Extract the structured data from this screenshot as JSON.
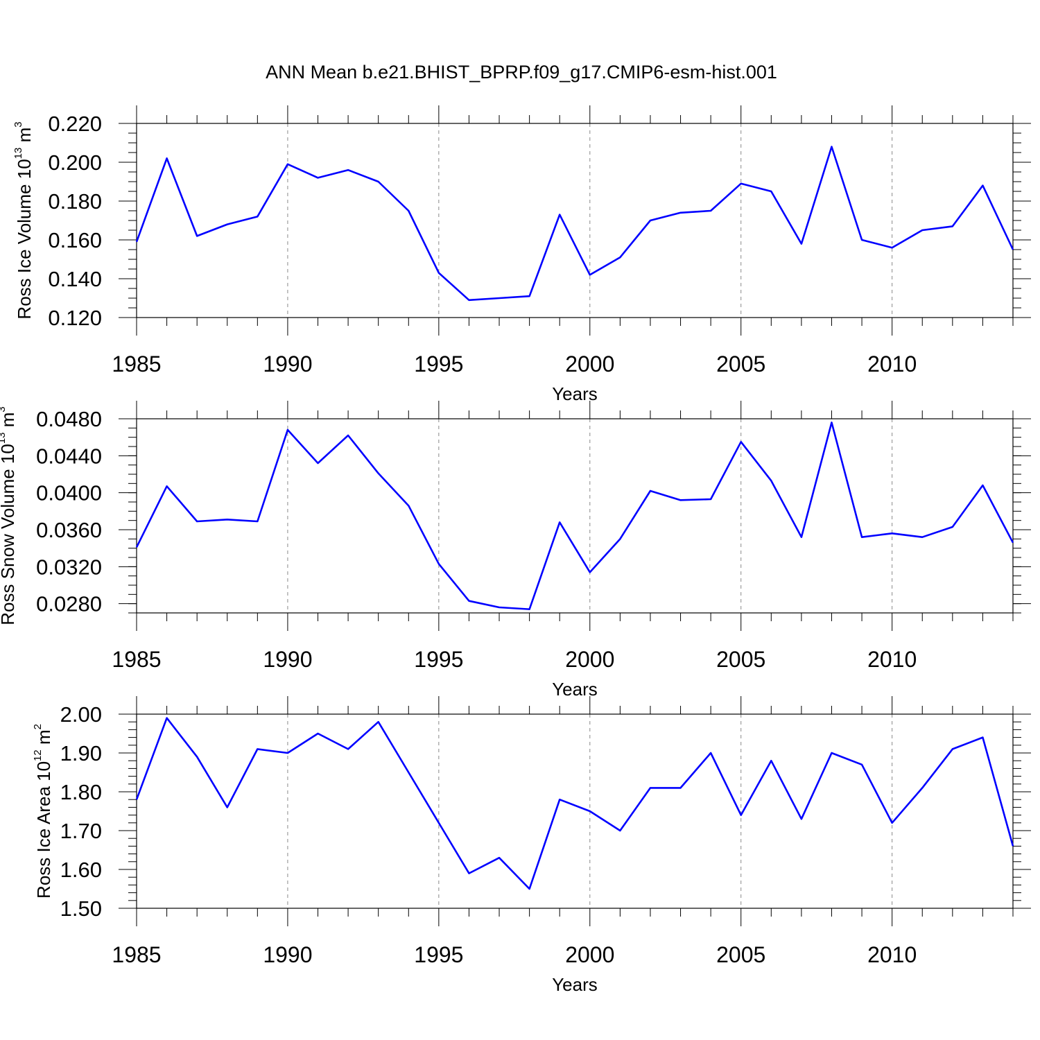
{
  "title": "ANN Mean b.e21.BHIST_BPRP.f09_g17.CMIP6-esm-hist.001",
  "line_color": "#0000ff",
  "chart_data": [
    {
      "type": "line",
      "name": "ice-volume",
      "title": "ANN Mean b.e21.BHIST_BPRP.f09_g17.CMIP6-esm-hist.001",
      "xlabel": "Years",
      "ylabel": "Ross Ice Volume 10",
      "ylabel_sup": "13",
      "ylabel_unit": " m",
      "ylabel_unit_sup": "3",
      "xlim": [
        1985,
        2014
      ],
      "ylim": [
        0.12,
        0.22
      ],
      "x_ticks": [
        1985,
        1990,
        1995,
        2000,
        2005,
        2010
      ],
      "x_tick_labels": [
        "1985",
        "1990",
        "1995",
        "2000",
        "2005",
        "2010"
      ],
      "y_ticks": [
        0.12,
        0.14,
        0.16,
        0.18,
        0.2,
        0.22
      ],
      "y_tick_labels": [
        "0.120",
        "0.140",
        "0.160",
        "0.180",
        "0.200",
        "0.220"
      ],
      "y_minor_step": 0.005,
      "x": [
        1985,
        1986,
        1987,
        1988,
        1989,
        1990,
        1991,
        1992,
        1993,
        1994,
        1995,
        1996,
        1997,
        1998,
        1999,
        2000,
        2001,
        2002,
        2003,
        2004,
        2005,
        2006,
        2007,
        2008,
        2009,
        2010,
        2011,
        2012,
        2013,
        2014
      ],
      "values": [
        0.159,
        0.202,
        0.162,
        0.168,
        0.172,
        0.199,
        0.192,
        0.196,
        0.19,
        0.175,
        0.143,
        0.129,
        0.13,
        0.131,
        0.173,
        0.142,
        0.151,
        0.17,
        0.174,
        0.175,
        0.189,
        0.185,
        0.158,
        0.208,
        0.16,
        0.156,
        0.165,
        0.167,
        0.188,
        0.155
      ]
    },
    {
      "type": "line",
      "name": "snow-volume",
      "xlabel": "Years",
      "ylabel": "Ross Snow Volume 10",
      "ylabel_sup": "13",
      "ylabel_unit": " m",
      "ylabel_unit_sup": "3",
      "xlim": [
        1985,
        2014
      ],
      "ylim": [
        0.027,
        0.048
      ],
      "x_ticks": [
        1985,
        1990,
        1995,
        2000,
        2005,
        2010
      ],
      "x_tick_labels": [
        "1985",
        "1990",
        "1995",
        "2000",
        "2005",
        "2010"
      ],
      "y_ticks": [
        0.028,
        0.032,
        0.036,
        0.04,
        0.044,
        0.048
      ],
      "y_tick_labels": [
        "0.0280",
        "0.0320",
        "0.0360",
        "0.0400",
        "0.0440",
        "0.0480"
      ],
      "y_minor_step": 0.001,
      "x": [
        1985,
        1986,
        1987,
        1988,
        1989,
        1990,
        1991,
        1992,
        1993,
        1994,
        1995,
        1996,
        1997,
        1998,
        1999,
        2000,
        2001,
        2002,
        2003,
        2004,
        2005,
        2006,
        2007,
        2008,
        2009,
        2010,
        2011,
        2012,
        2013,
        2014
      ],
      "values": [
        0.0341,
        0.0407,
        0.0369,
        0.0371,
        0.0369,
        0.0468,
        0.0432,
        0.0462,
        0.0421,
        0.0386,
        0.0323,
        0.0283,
        0.0276,
        0.0274,
        0.0368,
        0.0314,
        0.035,
        0.0402,
        0.0392,
        0.0393,
        0.0455,
        0.0413,
        0.0352,
        0.0476,
        0.0352,
        0.0356,
        0.0352,
        0.0363,
        0.0408,
        0.0346
      ]
    },
    {
      "type": "line",
      "name": "ice-area",
      "xlabel": "Years",
      "ylabel": "Ross Ice Area 10",
      "ylabel_sup": "12",
      "ylabel_unit": " m",
      "ylabel_unit_sup": "2",
      "xlim": [
        1985,
        2014
      ],
      "ylim": [
        1.5,
        2.0
      ],
      "x_ticks": [
        1985,
        1990,
        1995,
        2000,
        2005,
        2010
      ],
      "x_tick_labels": [
        "1985",
        "1990",
        "1995",
        "2000",
        "2005",
        "2010"
      ],
      "y_ticks": [
        1.5,
        1.6,
        1.7,
        1.8,
        1.9,
        2.0
      ],
      "y_tick_labels": [
        "1.50",
        "1.60",
        "1.70",
        "1.80",
        "1.90",
        "2.00"
      ],
      "y_minor_step": 0.02,
      "x": [
        1985,
        1986,
        1987,
        1988,
        1989,
        1990,
        1991,
        1992,
        1993,
        1994,
        1995,
        1996,
        1997,
        1998,
        1999,
        2000,
        2001,
        2002,
        2003,
        2004,
        2005,
        2006,
        2007,
        2008,
        2009,
        2010,
        2011,
        2012,
        2013,
        2014
      ],
      "values": [
        1.78,
        1.99,
        1.89,
        1.76,
        1.91,
        1.9,
        1.95,
        1.91,
        1.98,
        1.85,
        1.72,
        1.59,
        1.63,
        1.55,
        1.78,
        1.75,
        1.7,
        1.81,
        1.81,
        1.9,
        1.74,
        1.88,
        1.73,
        1.9,
        1.87,
        1.72,
        1.81,
        1.91,
        1.94,
        1.66
      ]
    }
  ]
}
